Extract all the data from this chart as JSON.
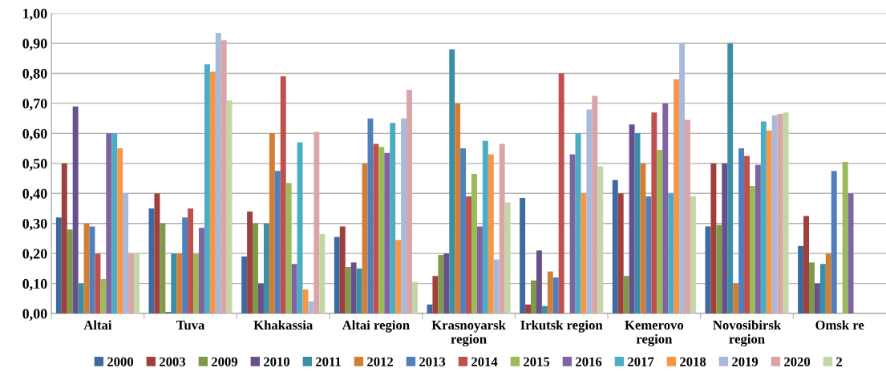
{
  "chart_data": {
    "type": "bar",
    "categories": [
      "Altai",
      "Tuva",
      "Khakassia",
      "Altai region",
      "Krasnoyarsk\nregion",
      "Irkutsk region",
      "Kemerovo\nregion",
      "Novosibirsk\nregion",
      "Omsk re"
    ],
    "series": [
      {
        "name": "2000",
        "color": "#3d6aa0",
        "values": [
          0.32,
          0.35,
          0.19,
          0.255,
          0.03,
          0.385,
          0.445,
          0.29,
          0.225
        ]
      },
      {
        "name": "2003",
        "color": "#a0403d",
        "values": [
          0.5,
          0.4,
          0.34,
          0.29,
          0.125,
          0.03,
          0.4,
          0.5,
          0.325
        ]
      },
      {
        "name": "2009",
        "color": "#7f9a48",
        "values": [
          0.28,
          0.3,
          0.3,
          0.155,
          0.195,
          0.11,
          0.125,
          0.295,
          0.17
        ]
      },
      {
        "name": "2010",
        "color": "#67508c",
        "values": [
          0.69,
          0.005,
          0.1,
          0.17,
          0.2,
          0.21,
          0.63,
          0.5,
          0.1
        ]
      },
      {
        "name": "2011",
        "color": "#3a8fa6",
        "values": [
          0.1,
          0.2,
          0.3,
          0.15,
          0.88,
          0.025,
          0.6,
          0.9,
          0.165
        ]
      },
      {
        "name": "2012",
        "color": "#d37e35",
        "values": [
          0.3,
          0.2,
          0.6,
          0.5,
          0.7,
          0.14,
          0.5,
          0.1,
          0.2
        ]
      },
      {
        "name": "2013",
        "color": "#4f80bd",
        "values": [
          0.29,
          0.32,
          0.475,
          0.65,
          0.55,
          0.12,
          0.39,
          0.55,
          0.475
        ]
      },
      {
        "name": "2014",
        "color": "#c0504d",
        "values": [
          0.2,
          0.35,
          0.79,
          0.565,
          0.39,
          0.8,
          0.67,
          0.525,
          null
        ]
      },
      {
        "name": "2015",
        "color": "#9bbb59",
        "values": [
          0.115,
          0.2,
          0.435,
          0.555,
          0.465,
          null,
          0.545,
          0.425,
          0.505
        ]
      },
      {
        "name": "2016",
        "color": "#8064a2",
        "values": [
          0.6,
          0.285,
          0.165,
          0.535,
          0.29,
          0.53,
          0.7,
          0.495,
          0.4
        ]
      },
      {
        "name": "2017",
        "color": "#4bacc6",
        "values": [
          0.6,
          0.83,
          0.57,
          0.635,
          0.575,
          0.6,
          0.4,
          0.64,
          null
        ]
      },
      {
        "name": "2018",
        "color": "#f79646",
        "values": [
          0.55,
          0.805,
          0.08,
          0.245,
          0.53,
          0.4,
          0.78,
          0.61,
          null
        ]
      },
      {
        "name": "2019",
        "color": "#a9b9da",
        "values": [
          0.4,
          0.935,
          0.04,
          0.65,
          0.18,
          0.68,
          0.9,
          0.66,
          null
        ]
      },
      {
        "name": "2020",
        "color": "#d9a5a6",
        "values": [
          0.2,
          0.91,
          0.605,
          0.745,
          0.565,
          0.725,
          0.645,
          0.665,
          null
        ]
      },
      {
        "name": "2",
        "color": "#c4d6a6",
        "values": [
          0.2,
          0.71,
          0.265,
          0.105,
          0.37,
          0.49,
          0.39,
          0.67,
          null
        ]
      }
    ],
    "ylim": [
      0,
      1.0
    ],
    "yticks": [
      {
        "value": 0,
        "label": "0,00"
      },
      {
        "value": 0.1,
        "label": "0,10"
      },
      {
        "value": 0.2,
        "label": "0,20"
      },
      {
        "value": 0.3,
        "label": "0,30"
      },
      {
        "value": 0.4,
        "label": "0,40"
      },
      {
        "value": 0.5,
        "label": "0,50"
      },
      {
        "value": 0.6,
        "label": "0,60"
      },
      {
        "value": 0.7,
        "label": "0,70"
      },
      {
        "value": 0.8,
        "label": "0,80"
      },
      {
        "value": 0.9,
        "label": "0,90"
      },
      {
        "value": 1.0,
        "label": "1,00"
      }
    ],
    "grid": "y",
    "legend": "bottom"
  }
}
